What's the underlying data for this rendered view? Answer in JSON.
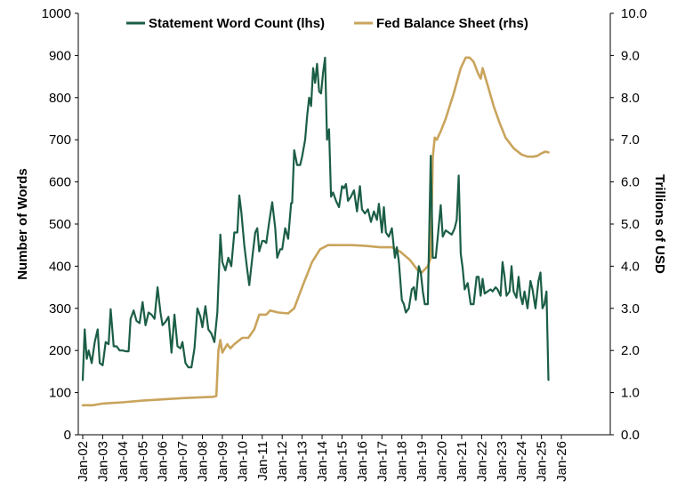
{
  "chart_data": {
    "type": "line",
    "legend_position": "top-center",
    "grid": false,
    "x_tick_labels": [
      "Jan-02",
      "Jan-03",
      "Jan-04",
      "Jan-05",
      "Jan-06",
      "Jan-07",
      "Jan-08",
      "Jan-09",
      "Jan-10",
      "Jan-11",
      "Jan-12",
      "Jan-13",
      "Jan-14",
      "Jan-15",
      "Jan-16",
      "Jan-17",
      "Jan-18",
      "Jan-19",
      "Jan-20",
      "Jan-21",
      "Jan-22",
      "Jan-23",
      "Jan-24",
      "Jan-25",
      "Jan-26"
    ],
    "y_left": {
      "label": "Number of Words",
      "range": [
        0,
        1000
      ],
      "tick_labels": [
        "0",
        "100",
        "200",
        "300",
        "400",
        "500",
        "600",
        "700",
        "800",
        "900",
        "1000"
      ]
    },
    "y_right": {
      "label": "Trillions of USD",
      "range": [
        0,
        10
      ],
      "tick_labels": [
        "0.0",
        "1.0",
        "2.0",
        "3.0",
        "4.0",
        "5.0",
        "6.0",
        "7.0",
        "8.0",
        "9.0",
        "10.0"
      ]
    },
    "series": [
      {
        "name": "Statement Word Count (lhs)",
        "color": "#1b5e45",
        "axis": "left",
        "points": [
          [
            2002.0,
            130
          ],
          [
            2002.1,
            250
          ],
          [
            2002.2,
            180
          ],
          [
            2002.3,
            200
          ],
          [
            2002.45,
            170
          ],
          [
            2002.6,
            220
          ],
          [
            2002.75,
            250
          ],
          [
            2002.85,
            170
          ],
          [
            2003.0,
            165
          ],
          [
            2003.15,
            220
          ],
          [
            2003.3,
            215
          ],
          [
            2003.4,
            298
          ],
          [
            2003.55,
            210
          ],
          [
            2003.7,
            210
          ],
          [
            2003.85,
            200
          ],
          [
            2004.0,
            200
          ],
          [
            2004.15,
            198
          ],
          [
            2004.3,
            198
          ],
          [
            2004.4,
            275
          ],
          [
            2004.55,
            295
          ],
          [
            2004.7,
            270
          ],
          [
            2004.85,
            265
          ],
          [
            2005.0,
            315
          ],
          [
            2005.15,
            260
          ],
          [
            2005.3,
            290
          ],
          [
            2005.45,
            285
          ],
          [
            2005.6,
            275
          ],
          [
            2005.75,
            350
          ],
          [
            2005.9,
            290
          ],
          [
            2006.0,
            260
          ],
          [
            2006.15,
            268
          ],
          [
            2006.3,
            280
          ],
          [
            2006.45,
            195
          ],
          [
            2006.6,
            285
          ],
          [
            2006.75,
            210
          ],
          [
            2006.9,
            205
          ],
          [
            2007.0,
            220
          ],
          [
            2007.15,
            170
          ],
          [
            2007.3,
            160
          ],
          [
            2007.45,
            160
          ],
          [
            2007.6,
            205
          ],
          [
            2007.75,
            300
          ],
          [
            2007.9,
            280
          ],
          [
            2008.0,
            255
          ],
          [
            2008.15,
            305
          ],
          [
            2008.3,
            250
          ],
          [
            2008.45,
            240
          ],
          [
            2008.6,
            220
          ],
          [
            2008.75,
            290
          ],
          [
            2008.9,
            475
          ],
          [
            2009.0,
            410
          ],
          [
            2009.15,
            390
          ],
          [
            2009.3,
            420
          ],
          [
            2009.45,
            400
          ],
          [
            2009.6,
            480
          ],
          [
            2009.75,
            480
          ],
          [
            2009.85,
            568
          ],
          [
            2009.95,
            530
          ],
          [
            2010.1,
            450
          ],
          [
            2010.25,
            390
          ],
          [
            2010.35,
            355
          ],
          [
            2010.5,
            420
          ],
          [
            2010.65,
            480
          ],
          [
            2010.75,
            490
          ],
          [
            2010.85,
            435
          ],
          [
            2011.0,
            460
          ],
          [
            2011.1,
            460
          ],
          [
            2011.2,
            455
          ],
          [
            2011.35,
            505
          ],
          [
            2011.5,
            552
          ],
          [
            2011.65,
            490
          ],
          [
            2011.75,
            420
          ],
          [
            2011.9,
            440
          ],
          [
            2012.0,
            440
          ],
          [
            2012.15,
            490
          ],
          [
            2012.3,
            465
          ],
          [
            2012.45,
            550
          ],
          [
            2012.5,
            550
          ],
          [
            2012.6,
            675
          ],
          [
            2012.75,
            640
          ],
          [
            2012.9,
            640
          ],
          [
            2013.0,
            660
          ],
          [
            2013.15,
            700
          ],
          [
            2013.25,
            755
          ],
          [
            2013.35,
            800
          ],
          [
            2013.45,
            780
          ],
          [
            2013.55,
            870
          ],
          [
            2013.65,
            835
          ],
          [
            2013.75,
            880
          ],
          [
            2013.85,
            815
          ],
          [
            2013.95,
            810
          ],
          [
            2014.05,
            860
          ],
          [
            2014.15,
            895
          ],
          [
            2014.25,
            700
          ],
          [
            2014.35,
            725
          ],
          [
            2014.45,
            565
          ],
          [
            2014.55,
            575
          ],
          [
            2014.7,
            555
          ],
          [
            2014.85,
            540
          ],
          [
            2015.0,
            590
          ],
          [
            2015.1,
            585
          ],
          [
            2015.2,
            595
          ],
          [
            2015.3,
            555
          ],
          [
            2015.45,
            565
          ],
          [
            2015.6,
            580
          ],
          [
            2015.75,
            530
          ],
          [
            2015.9,
            590
          ],
          [
            2016.0,
            535
          ],
          [
            2016.15,
            525
          ],
          [
            2016.3,
            535
          ],
          [
            2016.45,
            505
          ],
          [
            2016.6,
            530
          ],
          [
            2016.75,
            510
          ],
          [
            2016.85,
            548
          ],
          [
            2017.0,
            480
          ],
          [
            2017.1,
            540
          ],
          [
            2017.2,
            480
          ],
          [
            2017.35,
            470
          ],
          [
            2017.5,
            490
          ],
          [
            2017.65,
            420
          ],
          [
            2017.75,
            445
          ],
          [
            2017.85,
            410
          ],
          [
            2018.0,
            320
          ],
          [
            2018.1,
            310
          ],
          [
            2018.2,
            290
          ],
          [
            2018.35,
            300
          ],
          [
            2018.5,
            345
          ],
          [
            2018.6,
            350
          ],
          [
            2018.7,
            320
          ],
          [
            2018.85,
            400
          ],
          [
            2018.95,
            385
          ],
          [
            2019.05,
            340
          ],
          [
            2019.15,
            310
          ],
          [
            2019.3,
            310
          ],
          [
            2019.45,
            662
          ],
          [
            2019.55,
            420
          ],
          [
            2019.7,
            420
          ],
          [
            2019.8,
            470
          ],
          [
            2019.95,
            545
          ],
          [
            2020.05,
            470
          ],
          [
            2020.2,
            485
          ],
          [
            2020.35,
            480
          ],
          [
            2020.5,
            475
          ],
          [
            2020.65,
            490
          ],
          [
            2020.75,
            510
          ],
          [
            2020.85,
            615
          ],
          [
            2020.95,
            430
          ],
          [
            2021.05,
            395
          ],
          [
            2021.15,
            345
          ],
          [
            2021.3,
            360
          ],
          [
            2021.45,
            310
          ],
          [
            2021.6,
            310
          ],
          [
            2021.75,
            375
          ],
          [
            2021.85,
            375
          ],
          [
            2021.95,
            330
          ],
          [
            2022.05,
            370
          ],
          [
            2022.15,
            335
          ],
          [
            2022.3,
            340
          ],
          [
            2022.45,
            345
          ],
          [
            2022.55,
            340
          ],
          [
            2022.7,
            350
          ],
          [
            2022.8,
            345
          ],
          [
            2022.95,
            330
          ],
          [
            2023.05,
            410
          ],
          [
            2023.15,
            375
          ],
          [
            2023.25,
            330
          ],
          [
            2023.4,
            340
          ],
          [
            2023.5,
            400
          ],
          [
            2023.6,
            340
          ],
          [
            2023.75,
            325
          ],
          [
            2023.85,
            375
          ],
          [
            2023.95,
            330
          ],
          [
            2024.05,
            310
          ],
          [
            2024.15,
            340
          ],
          [
            2024.3,
            300
          ],
          [
            2024.45,
            365
          ],
          [
            2024.55,
            345
          ],
          [
            2024.7,
            300
          ],
          [
            2024.85,
            365
          ],
          [
            2024.95,
            385
          ],
          [
            2025.05,
            300
          ],
          [
            2025.15,
            310
          ],
          [
            2025.25,
            340
          ],
          [
            2025.35,
            130
          ]
        ]
      },
      {
        "name": "Fed Balance Sheet (rhs)",
        "color": "#c9a45c",
        "axis": "right",
        "points": [
          [
            2002.0,
            0.7
          ],
          [
            2002.5,
            0.7
          ],
          [
            2003.0,
            0.74
          ],
          [
            2004.0,
            0.77
          ],
          [
            2005.0,
            0.81
          ],
          [
            2006.0,
            0.84
          ],
          [
            2007.0,
            0.87
          ],
          [
            2008.0,
            0.89
          ],
          [
            2008.55,
            0.9
          ],
          [
            2008.7,
            0.92
          ],
          [
            2008.8,
            2.0
          ],
          [
            2008.9,
            2.25
          ],
          [
            2009.0,
            1.95
          ],
          [
            2009.25,
            2.15
          ],
          [
            2009.4,
            2.05
          ],
          [
            2009.6,
            2.15
          ],
          [
            2010.0,
            2.3
          ],
          [
            2010.3,
            2.3
          ],
          [
            2010.6,
            2.5
          ],
          [
            2010.85,
            2.85
          ],
          [
            2011.2,
            2.85
          ],
          [
            2011.4,
            2.95
          ],
          [
            2011.8,
            2.9
          ],
          [
            2012.3,
            2.88
          ],
          [
            2012.6,
            3.0
          ],
          [
            2013.0,
            3.5
          ],
          [
            2013.5,
            4.1
          ],
          [
            2013.9,
            4.4
          ],
          [
            2014.3,
            4.5
          ],
          [
            2014.8,
            4.5
          ],
          [
            2015.5,
            4.5
          ],
          [
            2016.2,
            4.48
          ],
          [
            2016.9,
            4.45
          ],
          [
            2017.5,
            4.45
          ],
          [
            2017.9,
            4.35
          ],
          [
            2018.4,
            4.15
          ],
          [
            2018.8,
            3.9
          ],
          [
            2019.0,
            3.85
          ],
          [
            2019.3,
            4.0
          ],
          [
            2019.45,
            4.2
          ],
          [
            2019.55,
            6.6
          ],
          [
            2019.65,
            7.05
          ],
          [
            2019.75,
            7.0
          ],
          [
            2019.95,
            7.2
          ],
          [
            2020.2,
            7.5
          ],
          [
            2020.6,
            8.1
          ],
          [
            2020.95,
            8.7
          ],
          [
            2021.2,
            8.95
          ],
          [
            2021.4,
            8.95
          ],
          [
            2021.6,
            8.85
          ],
          [
            2021.8,
            8.6
          ],
          [
            2021.95,
            8.45
          ],
          [
            2022.05,
            8.7
          ],
          [
            2022.3,
            8.3
          ],
          [
            2022.6,
            7.8
          ],
          [
            2022.9,
            7.4
          ],
          [
            2023.2,
            7.05
          ],
          [
            2023.6,
            6.8
          ],
          [
            2024.0,
            6.65
          ],
          [
            2024.3,
            6.6
          ],
          [
            2024.6,
            6.6
          ],
          [
            2024.8,
            6.62
          ],
          [
            2025.0,
            6.68
          ],
          [
            2025.2,
            6.72
          ],
          [
            2025.35,
            6.7
          ]
        ]
      }
    ]
  }
}
